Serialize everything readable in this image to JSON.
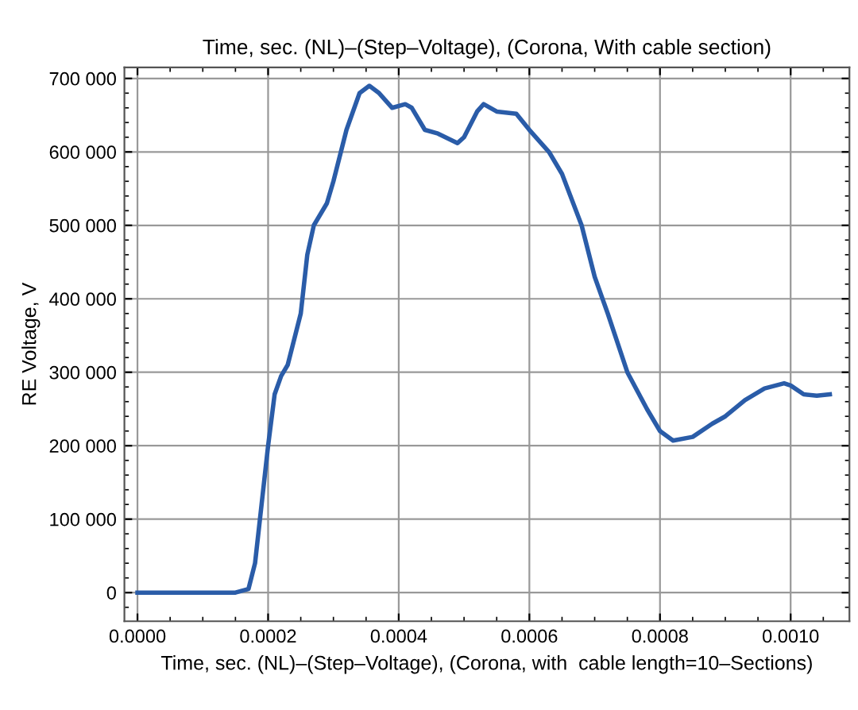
{
  "chart_data": {
    "type": "line",
    "title": "Time, sec. (NL)–(Step–Voltage), (Corona, With cable section)",
    "xlabel": "Time, sec. (NL)–(Step–Voltage), (Corona, with  cable length=10–Sections)",
    "ylabel": "RE Voltage, V",
    "xlim": [
      -2e-05,
      0.00109
    ],
    "ylim": [
      -39000,
      715000
    ],
    "xticks": [
      {
        "value": 0,
        "label": "0.0000"
      },
      {
        "value": 0.0002,
        "label": "0.0002"
      },
      {
        "value": 0.0004,
        "label": "0.0004"
      },
      {
        "value": 0.0006,
        "label": "0.0006"
      },
      {
        "value": 0.0008,
        "label": "0.0008"
      },
      {
        "value": 0.001,
        "label": "0.0010"
      }
    ],
    "yticks": [
      {
        "value": 0,
        "label": "0"
      },
      {
        "value": 100000,
        "label": "100 000"
      },
      {
        "value": 200000,
        "label": "200 000"
      },
      {
        "value": 300000,
        "label": "300 000"
      },
      {
        "value": 400000,
        "label": "400 000"
      },
      {
        "value": 500000,
        "label": "500 000"
      },
      {
        "value": 600000,
        "label": "600 000"
      },
      {
        "value": 700000,
        "label": "700 000"
      }
    ],
    "grid": true,
    "marker": "none",
    "line_style": "solid",
    "x": [
      0,
      0.00015,
      0.00017,
      0.00018,
      0.00019,
      0.0002,
      0.00021,
      0.00022,
      0.00023,
      0.00025,
      0.00026,
      0.00027,
      0.00029,
      0.0003,
      0.00032,
      0.00034,
      0.000355,
      0.00037,
      0.00039,
      0.00041,
      0.00042,
      0.00044,
      0.00046,
      0.00049,
      0.0005,
      0.00052,
      0.00053,
      0.00055,
      0.00058,
      0.0006,
      0.00063,
      0.00065,
      0.00068,
      0.0007,
      0.00072,
      0.00075,
      0.00078,
      0.0008,
      0.00082,
      0.00085,
      0.00088,
      0.0009,
      0.00093,
      0.00096,
      0.00099,
      0.001,
      0.00102,
      0.00104,
      0.00106
    ],
    "series": [
      {
        "color": "#2a5ca8",
        "values": [
          0,
          0,
          5000,
          40000,
          120000,
          200000,
          270000,
          295000,
          310000,
          380000,
          460000,
          500000,
          530000,
          560000,
          630000,
          680000,
          690000,
          680000,
          660000,
          665000,
          660000,
          630000,
          625000,
          612000,
          620000,
          655000,
          665000,
          655000,
          652000,
          630000,
          600000,
          570000,
          500000,
          430000,
          380000,
          300000,
          250000,
          220000,
          207000,
          212000,
          230000,
          240000,
          262000,
          278000,
          285000,
          282000,
          270000,
          268000,
          270000
        ]
      }
    ]
  }
}
